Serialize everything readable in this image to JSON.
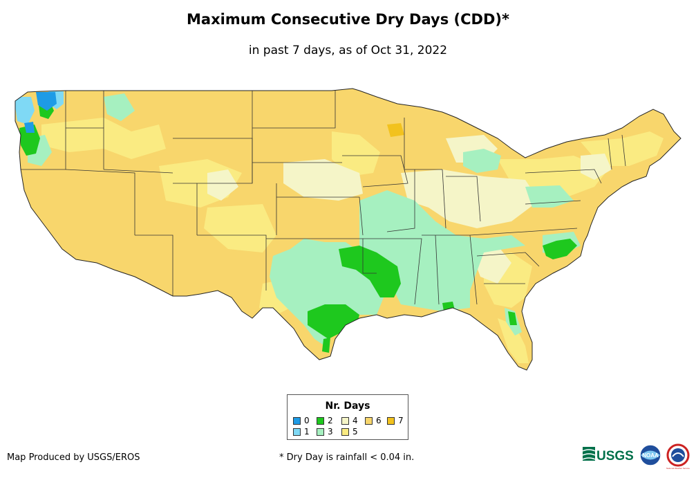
{
  "title": "Maximum Consecutive Dry Days (CDD)*",
  "subtitle": "in past 7 days, as of Oct 31, 2022",
  "legend": {
    "title": "Nr. Days",
    "items": [
      {
        "label": "0",
        "color": "#1e9be6"
      },
      {
        "label": "1",
        "color": "#7fd9f5"
      },
      {
        "label": "2",
        "color": "#1ec81e"
      },
      {
        "label": "3",
        "color": "#a6f0c0"
      },
      {
        "label": "4",
        "color": "#f5f5c8"
      },
      {
        "label": "5",
        "color": "#faeb82"
      },
      {
        "label": "6",
        "color": "#f8d66c"
      },
      {
        "label": "7",
        "color": "#f2c21e"
      }
    ]
  },
  "credit": "Map Produced by USGS/EROS",
  "footnote": "* Dry Day is rainfall < 0.04 in.",
  "logos": [
    "USGS",
    "NOAA",
    "National Weather Service"
  ]
}
